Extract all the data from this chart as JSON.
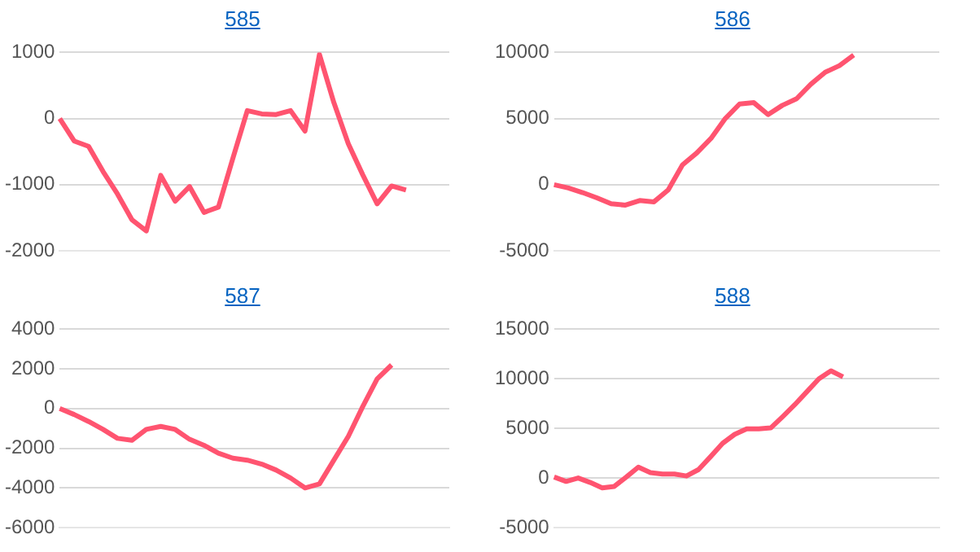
{
  "chart_data": [
    {
      "type": "line",
      "title": "585",
      "categories": [
        null,
        null,
        null,
        null,
        null,
        null,
        null,
        null,
        null,
        null,
        null,
        null,
        null,
        null,
        null,
        null,
        null,
        null,
        null,
        null,
        null,
        null,
        null,
        null,
        null,
        null,
        null,
        null
      ],
      "series": [
        {
          "color": "#ff5470",
          "values": [
            0,
            -340,
            -420,
            -800,
            -1140,
            -1530,
            -1700,
            -860,
            -1250,
            -1030,
            -1420,
            -1340,
            -600,
            120,
            70,
            60,
            120,
            -190,
            970,
            240,
            -380,
            -850,
            -1290,
            -1020,
            -1080,
            null,
            null,
            null
          ]
        }
      ],
      "ylim": [
        -2000,
        1000
      ],
      "yticks": [
        -2000,
        -1000,
        0,
        1000
      ],
      "grid": "y",
      "tick_labels": "y",
      "legend": false,
      "marker": "none"
    },
    {
      "type": "line",
      "title": "586",
      "categories": [
        null,
        null,
        null,
        null,
        null,
        null,
        null,
        null,
        null,
        null,
        null,
        null,
        null,
        null,
        null,
        null,
        null,
        null,
        null,
        null,
        null,
        null,
        null,
        null,
        null,
        null,
        null,
        null
      ],
      "series": [
        {
          "color": "#ff5470",
          "values": [
            0,
            -250,
            -600,
            -1000,
            -1450,
            -1550,
            -1200,
            -1300,
            -400,
            1500,
            2400,
            3500,
            5000,
            6100,
            6200,
            5300,
            6000,
            6500,
            7600,
            8500,
            9000,
            9800,
            null,
            null,
            null,
            null,
            null,
            null
          ]
        }
      ],
      "ylim": [
        -5000,
        10000
      ],
      "yticks": [
        -5000,
        0,
        5000,
        10000
      ],
      "grid": "y",
      "tick_labels": "y",
      "legend": false,
      "marker": "none"
    },
    {
      "type": "line",
      "title": "587",
      "categories": [
        null,
        null,
        null,
        null,
        null,
        null,
        null,
        null,
        null,
        null,
        null,
        null,
        null,
        null,
        null,
        null,
        null,
        null,
        null,
        null,
        null,
        null,
        null,
        null,
        null,
        null,
        null,
        null
      ],
      "series": [
        {
          "color": "#ff5470",
          "values": [
            0,
            -300,
            -650,
            -1050,
            -1500,
            -1600,
            -1050,
            -900,
            -1050,
            -1550,
            -1850,
            -2250,
            -2500,
            -2600,
            -2800,
            -3100,
            -3500,
            -4000,
            -3800,
            -2600,
            -1400,
            100,
            1500,
            2200,
            null,
            null,
            null,
            null
          ]
        }
      ],
      "ylim": [
        -6000,
        4000
      ],
      "yticks": [
        -6000,
        -4000,
        -2000,
        0,
        2000,
        4000
      ],
      "grid": "y",
      "tick_labels": "y",
      "legend": false,
      "marker": "none"
    },
    {
      "type": "line",
      "title": "588",
      "categories": [
        null,
        null,
        null,
        null,
        null,
        null,
        null,
        null,
        null,
        null,
        null,
        null,
        null,
        null,
        null,
        null,
        null,
        null,
        null,
        null,
        null,
        null,
        null,
        null,
        null,
        null,
        null,
        null,
        null,
        null,
        null,
        null,
        null
      ],
      "series": [
        {
          "color": "#ff5470",
          "values": [
            100,
            -350,
            0,
            -450,
            -1000,
            -850,
            100,
            1100,
            550,
            400,
            400,
            200,
            850,
            2150,
            3500,
            4400,
            4950,
            4950,
            5050,
            6200,
            7400,
            8700,
            10000,
            10800,
            10200,
            null,
            null,
            null,
            null,
            null,
            null,
            null,
            null
          ]
        }
      ],
      "ylim": [
        -5000,
        15000
      ],
      "yticks": [
        -5000,
        0,
        5000,
        10000,
        15000
      ],
      "grid": "y",
      "tick_labels": "y",
      "legend": false,
      "marker": "none"
    }
  ]
}
